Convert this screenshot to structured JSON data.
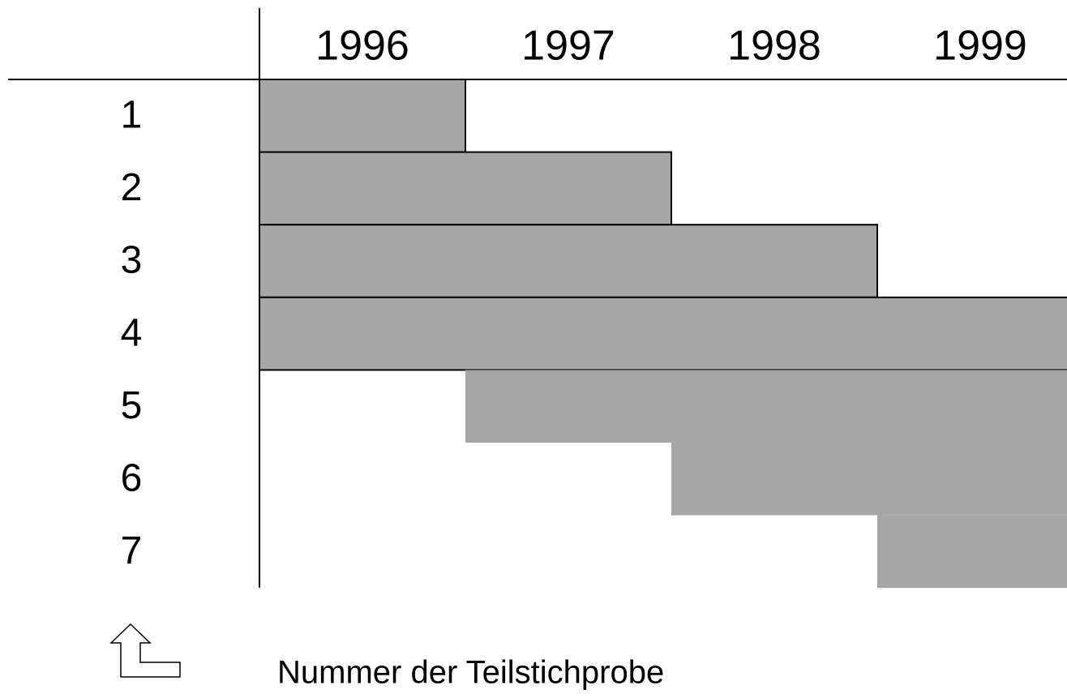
{
  "chart_data": {
    "type": "gantt",
    "x": [
      1996,
      1997,
      1998,
      1999
    ],
    "categories": [
      "1",
      "2",
      "3",
      "4",
      "5",
      "6",
      "7"
    ],
    "start": [
      1996,
      1996,
      1996,
      1996,
      1997,
      1998,
      1999
    ],
    "end": [
      1996,
      1997,
      1998,
      1999,
      1999,
      1999,
      1999
    ],
    "color": "#a6a6a6",
    "caption": "Nummer der Teilstichprobe"
  }
}
